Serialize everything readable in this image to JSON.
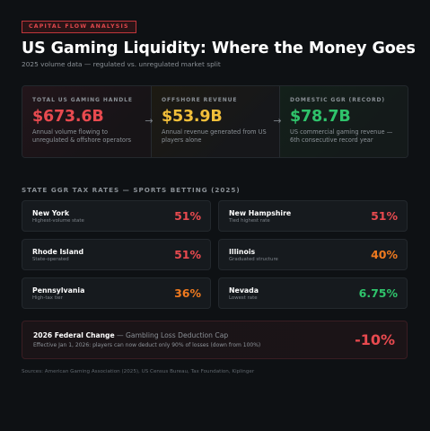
{
  "colors": {
    "accent_red": "#e84a4f",
    "accent_orange": "#f07a1f",
    "accent_yellow": "#f2bf3a",
    "accent_green": "#2fc36b",
    "background": "#0e1114"
  },
  "header": {
    "tag": "CAPITAL FLOW ANALYSIS",
    "title": "US Gaming Liquidity: Where the Money Goes",
    "subtitle": "2025 volume data — regulated vs. unregulated market split"
  },
  "stats": [
    {
      "label": "TOTAL US GAMING HANDLE",
      "value": "$673.6B",
      "color": "#e84a4f",
      "description": "Annual volume flowing to unregulated & offshore operators"
    },
    {
      "label": "OFFSHORE REVENUE",
      "value": "$53.9B",
      "color": "#f2bf3a",
      "description": "Annual revenue generated from US players alone",
      "arrow_icon": "→"
    },
    {
      "label": "DOMESTIC GGR (RECORD)",
      "value": "$78.7B",
      "color": "#2fc36b",
      "description": "US commercial gaming revenue — 6th consecutive record year",
      "arrow_icon": "→"
    }
  ],
  "tax_section": {
    "label": "STATE GGR TAX RATES — SPORTS BETTING (2025)",
    "states": [
      {
        "name": "New York",
        "note": "Highest-volume state",
        "rate": "51%",
        "color": "#e84a4f"
      },
      {
        "name": "New Hampshire",
        "note": "Tied highest rate",
        "rate": "51%",
        "color": "#e84a4f"
      },
      {
        "name": "Rhode Island",
        "note": "State-operated",
        "rate": "51%",
        "color": "#e84a4f"
      },
      {
        "name": "Illinois",
        "note": "Graduated structure",
        "rate": "40%",
        "color": "#f07a1f"
      },
      {
        "name": "Pennsylvania",
        "note": "High-tax tier",
        "rate": "36%",
        "color": "#f07a1f"
      },
      {
        "name": "Nevada",
        "note": "Lowest rate",
        "rate": "6.75%",
        "color": "#2fc36b"
      }
    ]
  },
  "federal": {
    "title_bold": "2026 Federal Change",
    "title_rest": " — Gambling Loss Deduction Cap",
    "description": "Effective Jan 1, 2026: players can now deduct only 90% of losses (down from 100%)",
    "value": "-10%",
    "color": "#e84a4f"
  },
  "footer": {
    "sources": "Sources: American Gaming Association (2025), US Census Bureau, Tax Foundation, Kiplinger"
  }
}
